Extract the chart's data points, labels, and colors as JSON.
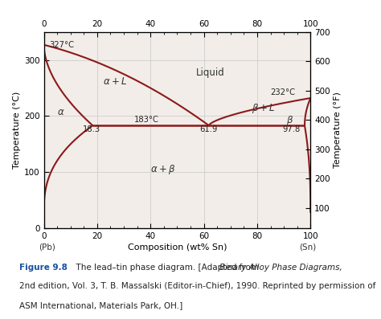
{
  "xlabel_bottom": "Composition (wt% Sn)",
  "ylabel_left": "Temperature (°C)",
  "ylabel_right": "Temperature (°F)",
  "xlim": [
    0,
    100
  ],
  "ylim_C": [
    0,
    350
  ],
  "line_color": "#8B1A1A",
  "bg_color": "#f2ede8",
  "grid_color": "#c8c8c8",
  "eutectic_T": 183,
  "eutectic_comp": 61.9,
  "alpha_solvus_comp": 18.3,
  "beta_solvus_comp": 97.8,
  "Pb_melt": 327,
  "Sn_melt": 232,
  "alpha_sol_bot_end_T": 28,
  "beta_sol_bot_end_T": 28,
  "F_ticks": [
    100,
    200,
    300,
    400,
    500,
    600,
    700
  ],
  "C_yticks": [
    0,
    100,
    200,
    300
  ],
  "x_xticks": [
    0,
    20,
    40,
    60,
    80,
    100
  ]
}
